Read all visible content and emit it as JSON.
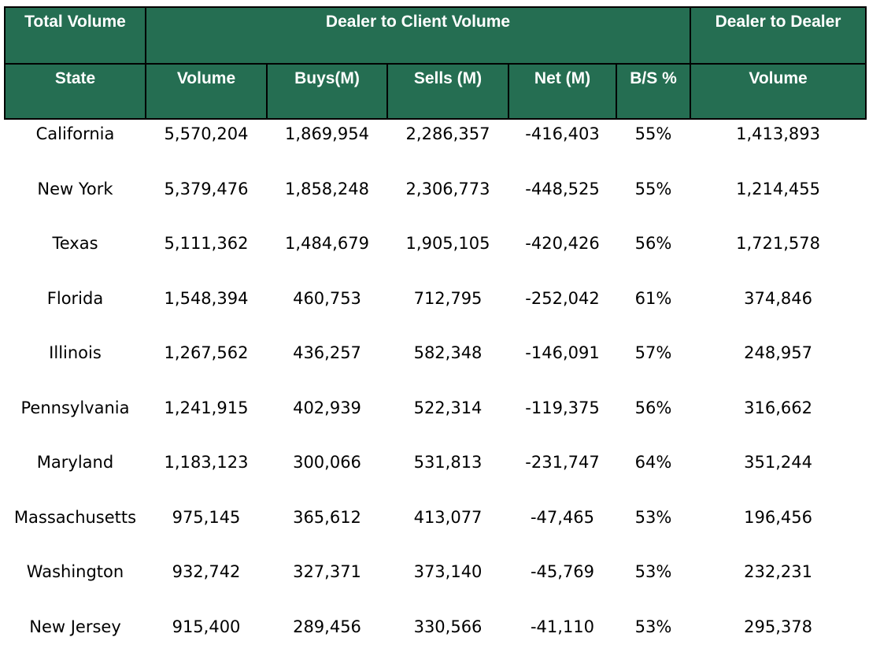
{
  "header": {
    "group_row": {
      "total_volume": "Total Volume",
      "dealer_to_client": "Dealer to Client Volume",
      "dealer_to_dealer": "Dealer to Dealer"
    },
    "columns": {
      "state": "State",
      "volume": "Volume",
      "buys": "Buys(M)",
      "sells": "Sells (M)",
      "net": "Net (M)",
      "bs_pct": "B/S %",
      "dd_volume": "Volume"
    }
  },
  "rows": [
    {
      "state": "California",
      "volume": "5,570,204",
      "buys": "1,869,954",
      "sells": "2,286,357",
      "net": "-416,403",
      "bs_pct": "55%",
      "dd_volume": "1,413,893"
    },
    {
      "state": "New York",
      "volume": "5,379,476",
      "buys": "1,858,248",
      "sells": "2,306,773",
      "net": "-448,525",
      "bs_pct": "55%",
      "dd_volume": "1,214,455"
    },
    {
      "state": "Texas",
      "volume": "5,111,362",
      "buys": "1,484,679",
      "sells": "1,905,105",
      "net": "-420,426",
      "bs_pct": "56%",
      "dd_volume": "1,721,578"
    },
    {
      "state": "Florida",
      "volume": "1,548,394",
      "buys": "460,753",
      "sells": "712,795",
      "net": "-252,042",
      "bs_pct": "61%",
      "dd_volume": "374,846"
    },
    {
      "state": "Illinois",
      "volume": "1,267,562",
      "buys": "436,257",
      "sells": "582,348",
      "net": "-146,091",
      "bs_pct": "57%",
      "dd_volume": "248,957"
    },
    {
      "state": "Pennsylvania",
      "volume": "1,241,915",
      "buys": "402,939",
      "sells": "522,314",
      "net": "-119,375",
      "bs_pct": "56%",
      "dd_volume": "316,662"
    },
    {
      "state": "Maryland",
      "volume": "1,183,123",
      "buys": "300,066",
      "sells": "531,813",
      "net": "-231,747",
      "bs_pct": "64%",
      "dd_volume": "351,244"
    },
    {
      "state": "Massachusetts",
      "volume": "975,145",
      "buys": "365,612",
      "sells": "413,077",
      "net": "-47,465",
      "bs_pct": "53%",
      "dd_volume": "196,456"
    },
    {
      "state": "Washington",
      "volume": "932,742",
      "buys": "327,371",
      "sells": "373,140",
      "net": "-45,769",
      "bs_pct": "53%",
      "dd_volume": "232,231"
    },
    {
      "state": "New Jersey",
      "volume": "915,400",
      "buys": "289,456",
      "sells": "330,566",
      "net": "-41,110",
      "bs_pct": "53%",
      "dd_volume": "295,378"
    }
  ],
  "colors": {
    "header_bg": "#256e52",
    "header_text": "#ffffff",
    "border": "#000000"
  }
}
